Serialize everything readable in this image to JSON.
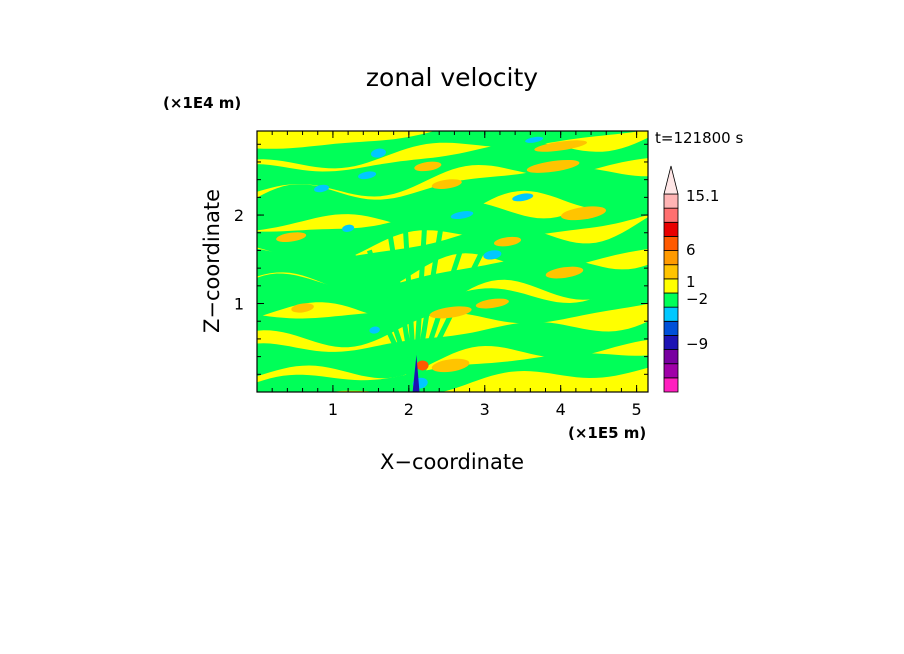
{
  "chart_data": {
    "type": "heatmap",
    "subtype": "filled-contour",
    "title": "zonal velocity",
    "xlabel": "X−coordinate",
    "ylabel": "Z−coordinate",
    "x_unit": "(×1E5 m)",
    "y_unit": "(×1E4 m)",
    "time_label": "t=121800 s",
    "xlim": [
      0,
      5.15
    ],
    "ylim": [
      0,
      2.95
    ],
    "xticks": [
      1,
      2,
      3,
      4,
      5
    ],
    "yticks": [
      1,
      2
    ],
    "colorbar": {
      "bins": [
        {
          "color": "#ff1fbf"
        },
        {
          "color": "#a000a8"
        },
        {
          "color": "#7800a0"
        },
        {
          "color": "#1e14b4"
        },
        {
          "color": "#0050d8"
        },
        {
          "color": "#00c8ff"
        },
        {
          "color": "#00ff58"
        },
        {
          "color": "#ffff00"
        },
        {
          "color": "#ffc400"
        },
        {
          "color": "#ff9a00"
        },
        {
          "color": "#ff5a00"
        },
        {
          "color": "#e80000"
        },
        {
          "color": "#ff7070"
        },
        {
          "color": "#ffb4b4"
        }
      ],
      "extend_color": "#ffe6e6",
      "labels": [
        "15.1",
        "6",
        "1",
        "−2",
        "−9"
      ],
      "label_values": [
        15.1,
        6,
        1,
        -2,
        -9
      ]
    },
    "field_colors": {
      "background": "#ffff00",
      "band": "#00ff58",
      "warm": "#ffc400",
      "cool": "#00c8ff",
      "hot": "#ff5a00",
      "cold": "#1e14b4"
    },
    "grid": false,
    "legend": "colorbar-right"
  }
}
